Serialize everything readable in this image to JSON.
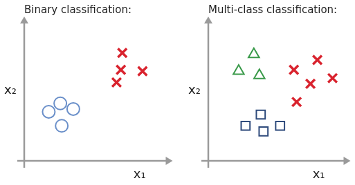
{
  "chart_data": [
    {
      "type": "scatter",
      "title": "Binary classification:",
      "x_label": "x₁",
      "y_label": "x₂",
      "xlim": [
        0,
        10
      ],
      "ylim": [
        0,
        10
      ],
      "grid": false,
      "tick_labels": false,
      "series": [
        {
          "color": "#6a8fc9",
          "marker": "circle",
          "x": [
            1.7,
            2.5,
            3.4,
            2.6
          ],
          "values": [
            3.5,
            4.1,
            3.7,
            2.5
          ]
        },
        {
          "color": "#d9232e",
          "marker": "x",
          "x": [
            6.8,
            6.7,
            8.2,
            6.4
          ],
          "values": [
            7.7,
            6.5,
            6.4,
            5.6
          ]
        }
      ]
    },
    {
      "type": "scatter",
      "title": "Multi-class classification:",
      "x_label": "x₁",
      "y_label": "x₂",
      "xlim": [
        0,
        10
      ],
      "ylim": [
        0,
        10
      ],
      "grid": false,
      "tick_labels": false,
      "series": [
        {
          "color": "#3a9a4a",
          "marker": "triangle",
          "x": [
            3.3,
            2.2,
            3.7
          ],
          "values": [
            7.6,
            6.4,
            6.1
          ]
        },
        {
          "color": "#2f4b7c",
          "marker": "square",
          "x": [
            3.8,
            2.7,
            4.0,
            5.2
          ],
          "values": [
            3.3,
            2.5,
            2.1,
            2.5
          ]
        },
        {
          "color": "#d9232e",
          "marker": "x",
          "x": [
            7.9,
            6.2,
            7.4,
            9.0,
            6.4
          ],
          "values": [
            7.2,
            6.5,
            5.5,
            5.9,
            4.2
          ]
        }
      ]
    }
  ]
}
